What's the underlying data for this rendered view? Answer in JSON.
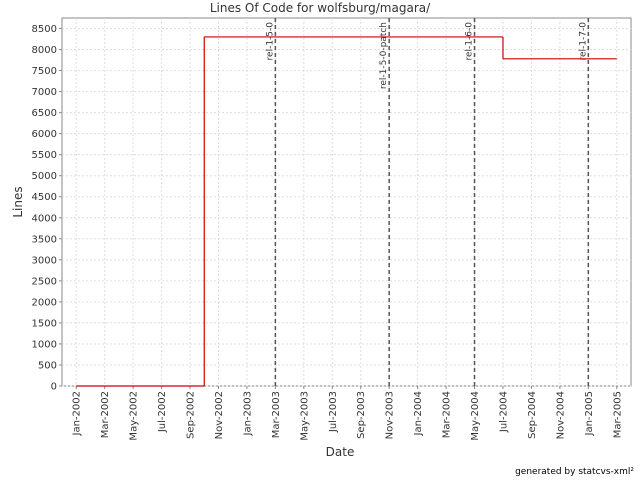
{
  "chart_data": {
    "type": "step",
    "title": "Lines Of Code for wolfsburg/magara/",
    "x_label": "Date",
    "y_label": "Lines",
    "footer": "generated by statcvs-xml²",
    "x": [
      "2002-01",
      "2002-10",
      "2004-07",
      "2005-03"
    ],
    "series": [
      {
        "name": "Lines",
        "color": "#cc0000",
        "values": [
          0,
          8300,
          7780,
          7780
        ]
      }
    ],
    "xlim": [
      "2001-12",
      "2005-04"
    ],
    "xticks": [
      {
        "value": "2002-01",
        "label": "Jan-2002"
      },
      {
        "value": "2002-03",
        "label": "Mar-2002"
      },
      {
        "value": "2002-05",
        "label": "May-2002"
      },
      {
        "value": "2002-07",
        "label": "Jul-2002"
      },
      {
        "value": "2002-09",
        "label": "Sep-2002"
      },
      {
        "value": "2002-11",
        "label": "Nov-2002"
      },
      {
        "value": "2003-01",
        "label": "Jan-2003"
      },
      {
        "value": "2003-03",
        "label": "Mar-2003"
      },
      {
        "value": "2003-05",
        "label": "May-2003"
      },
      {
        "value": "2003-07",
        "label": "Jul-2003"
      },
      {
        "value": "2003-09",
        "label": "Sep-2003"
      },
      {
        "value": "2003-11",
        "label": "Nov-2003"
      },
      {
        "value": "2004-01",
        "label": "Jan-2004"
      },
      {
        "value": "2004-03",
        "label": "Mar-2004"
      },
      {
        "value": "2004-05",
        "label": "May-2004"
      },
      {
        "value": "2004-07",
        "label": "Jul-2004"
      },
      {
        "value": "2004-09",
        "label": "Sep-2004"
      },
      {
        "value": "2004-11",
        "label": "Nov-2004"
      },
      {
        "value": "2005-01",
        "label": "Jan-2005"
      },
      {
        "value": "2005-03",
        "label": "Mar-2005"
      }
    ],
    "ylim": [
      0,
      8750
    ],
    "yticks": [
      0,
      500,
      1000,
      1500,
      2000,
      2500,
      3000,
      3500,
      4000,
      4500,
      5000,
      5500,
      6000,
      6500,
      7000,
      7500,
      8000,
      8500
    ],
    "grid": true,
    "annotations": [
      {
        "x": "2003-03",
        "label": "rel-1-5-0"
      },
      {
        "x": "2003-11",
        "label": "rel-1-5-0-patch"
      },
      {
        "x": "2004-05",
        "label": "rel-1-6-0"
      },
      {
        "x": "2005-01",
        "label": "rel-1-7-0"
      }
    ]
  }
}
